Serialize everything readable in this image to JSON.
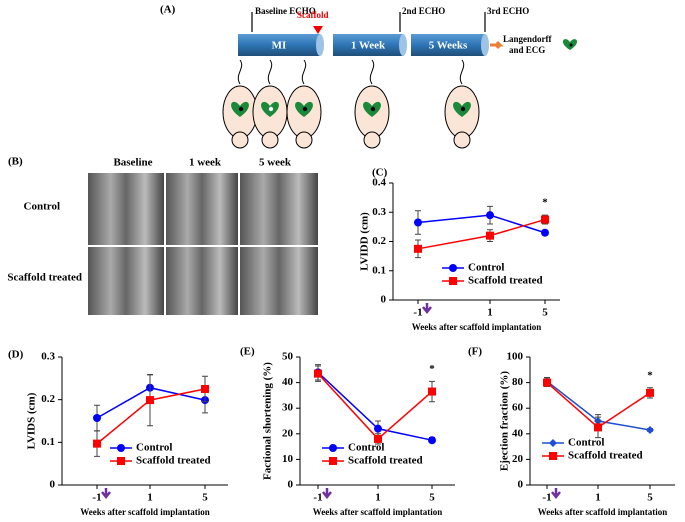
{
  "panel_a": {
    "label": "(A)",
    "baseline_echo": "Baseline ECHO",
    "scaffold": "Scaffold",
    "second_echo": "2nd ECHO",
    "third_echo": "3rd ECHO",
    "stage_mi": "MI",
    "stage_1": "1 Week",
    "stage_5": "5 Weeks",
    "end_1": "Langendorff",
    "end_2": "and ECG"
  },
  "panel_b": {
    "label": "(B)",
    "columns": [
      "Baseline",
      "1 week",
      "5 week"
    ],
    "rows": [
      "Control",
      "Scaffold treated"
    ]
  },
  "chart_data": [
    {
      "type": "line",
      "panel_label": "(C)",
      "y_label": "LVIDD (cm)",
      "x_label": "Weeks after scaffold implantation",
      "annotation": "*",
      "categories": [
        "-1",
        "1",
        "5"
      ],
      "ylim": [
        0,
        0.4
      ],
      "yticks": [
        0,
        0.1,
        0.2,
        0.3,
        0.4
      ],
      "series": [
        {
          "name": "Control",
          "color": "#0000ff",
          "marker": "circle",
          "values": [
            0.265,
            0.29,
            0.23
          ],
          "errors": [
            0.04,
            0.03,
            0.008
          ]
        },
        {
          "name": "Scaffold treated",
          "color": "#ff0000",
          "marker": "square",
          "values": [
            0.175,
            0.22,
            0.275
          ],
          "errors": [
            0.03,
            0.02,
            0.015
          ]
        }
      ]
    },
    {
      "type": "line",
      "panel_label": "(D)",
      "y_label": "LVIDS (cm)",
      "x_label": "Weeks after scaffold implantation",
      "categories": [
        "-1",
        "1",
        "5"
      ],
      "ylim": [
        0,
        0.3
      ],
      "yticks": [
        0,
        0.1,
        0.2,
        0.3
      ],
      "series": [
        {
          "name": "Control",
          "color": "#0000ff",
          "marker": "circle",
          "values": [
            0.157,
            0.228,
            0.199
          ],
          "errors": [
            0.03,
            0.03,
            0.03
          ]
        },
        {
          "name": "Scaffold treated",
          "color": "#ff0000",
          "marker": "square",
          "values": [
            0.097,
            0.199,
            0.225
          ],
          "errors": [
            0.03,
            0.06,
            0.03
          ]
        }
      ]
    },
    {
      "type": "line",
      "panel_label": "(E)",
      "y_label": "Factional shortening (%)",
      "x_label": "Weeks after scaffold implantation",
      "annotation": "*",
      "categories": [
        "-1",
        "1",
        "5"
      ],
      "ylim": [
        0,
        50
      ],
      "yticks": [
        0,
        10,
        20,
        30,
        40,
        50
      ],
      "series": [
        {
          "name": "Control",
          "color": "#0000ff",
          "marker": "circle",
          "values": [
            44,
            22,
            17.5
          ],
          "errors": [
            3,
            3,
            1
          ]
        },
        {
          "name": "Scaffold treated",
          "color": "#ff0000",
          "marker": "square",
          "values": [
            43.5,
            18,
            36.5
          ],
          "errors": [
            3,
            2,
            4
          ]
        }
      ]
    },
    {
      "type": "line",
      "panel_label": "(F)",
      "y_label": "Ejection fraction (%)",
      "x_label": "Weeks after scaffold implantation",
      "annotation": "*",
      "categories": [
        "-1",
        "1",
        "5"
      ],
      "ylim": [
        0,
        100
      ],
      "yticks": [
        0,
        20,
        40,
        60,
        80,
        100
      ],
      "series": [
        {
          "name": "Control",
          "color": "#1f4fd0",
          "marker": "diamond",
          "values": [
            81,
            50,
            43
          ],
          "errors": [
            3,
            5,
            1
          ]
        },
        {
          "name": "Scaffold treated",
          "color": "#ff0000",
          "marker": "square",
          "values": [
            80,
            45,
            72
          ],
          "errors": [
            3,
            8,
            4
          ]
        }
      ]
    }
  ]
}
